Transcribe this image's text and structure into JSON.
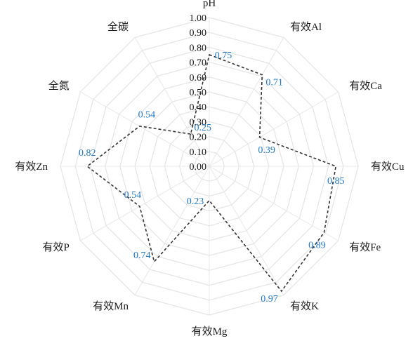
{
  "chart_data": {
    "type": "radar",
    "categories": [
      "pH",
      "有效Al",
      "有效Ca",
      "有效Cu",
      "有效Fe",
      "有效K",
      "有效Mg",
      "有效Mn",
      "有效P",
      "有效Zn",
      "全氮",
      "全碳"
    ],
    "values": [
      0.75,
      0.71,
      0.39,
      0.85,
      0.89,
      0.97,
      0.23,
      0.74,
      0.54,
      0.82,
      0.54,
      0.25
    ],
    "value_labels": [
      "0.75",
      "0.71",
      "0.39",
      "0.85",
      "0.89",
      "0.97",
      "0.23",
      "0.74",
      "0.54",
      "0.82",
      "0.54",
      "0.25"
    ],
    "radial_ticks": [
      "0.00",
      "0.10",
      "0.20",
      "0.30",
      "0.40",
      "0.50",
      "0.60",
      "0.70",
      "0.80",
      "0.90",
      "1.00"
    ],
    "rlim": [
      0,
      1
    ],
    "grid": true,
    "line_style": "dashed",
    "colors": {
      "line": "#333333",
      "value_label": "#1f78c8",
      "grid": "#e4e4e4",
      "text": "#1a1a1a"
    }
  }
}
